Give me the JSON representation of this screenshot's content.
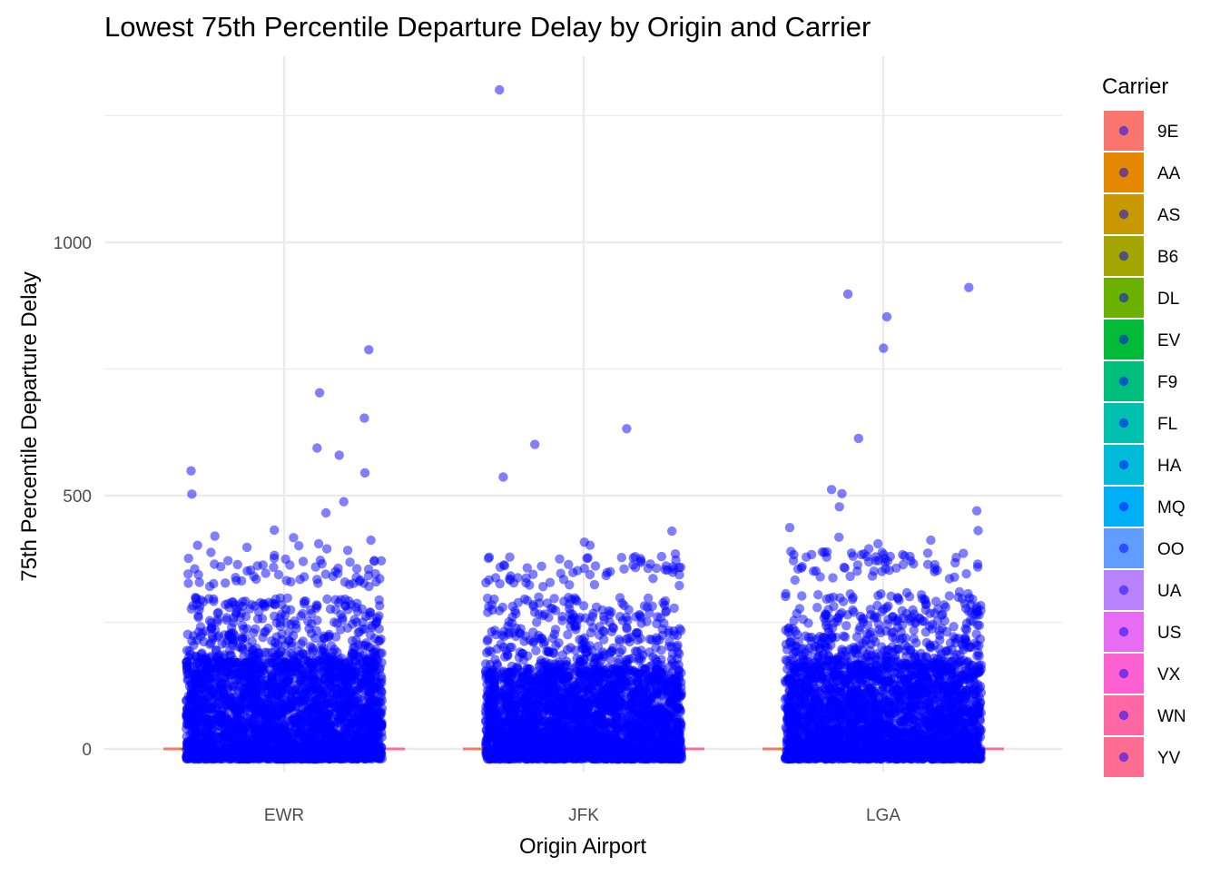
{
  "chart_data": {
    "type": "scatter",
    "title": "Lowest 75th Percentile Departure Delay by Origin and Carrier",
    "xlabel": "Origin Airport",
    "ylabel": "75th Percentile Departure Delay",
    "categories": [
      "EWR",
      "JFK",
      "LGA"
    ],
    "ylim": [
      -80,
      1360
    ],
    "y_ticks": [
      0,
      500,
      1000
    ],
    "y_tick_labels": [
      "0",
      "500",
      "1000"
    ],
    "grid": true,
    "legend": {
      "title": "Carrier",
      "position": "right",
      "entries": [
        "9E",
        "AA",
        "AS",
        "B6",
        "DL",
        "EV",
        "F9",
        "FL",
        "HA",
        "MQ",
        "OO",
        "UA",
        "US",
        "VX",
        "WN",
        "YV"
      ],
      "colors": [
        "#F8766D",
        "#E58700",
        "#C99800",
        "#A3A500",
        "#6BB100",
        "#00BA38",
        "#00BF7D",
        "#00C0AF",
        "#00BCD8",
        "#00B0F6",
        "#619CFF",
        "#B983FF",
        "#E76BF3",
        "#FD61D1",
        "#FF67A4",
        "#FF6C91"
      ]
    },
    "point_color": "#0000FF",
    "series": [
      {
        "category": "EWR",
        "outliers": [
          788,
          703,
          653,
          594,
          580,
          549,
          545,
          503,
          488,
          466,
          432,
          420,
          417,
          412,
          405,
          402,
          401,
          398,
          395,
          392,
          388,
          382,
          370
        ],
        "bulk_max": 300,
        "dense_range": [
          -20,
          170
        ]
      },
      {
        "category": "JFK",
        "outliers": [
          1301,
          632,
          601,
          537,
          430,
          408,
          402,
          385,
          375,
          365,
          362,
          358
        ],
        "bulk_max": 300,
        "dense_range": [
          -20,
          150
        ]
      },
      {
        "category": "LGA",
        "outliers": [
          911,
          898,
          853,
          791,
          613,
          512,
          504,
          478,
          470,
          437,
          431,
          418,
          412,
          405,
          395,
          388,
          385,
          380
        ],
        "bulk_max": 310,
        "dense_range": [
          -20,
          165
        ]
      }
    ]
  }
}
